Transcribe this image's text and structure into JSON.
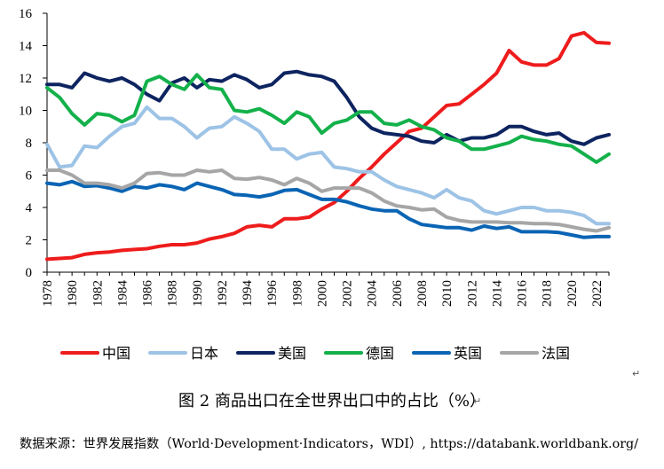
{
  "chart_data": {
    "type": "line",
    "title": "",
    "xlabel": "",
    "ylabel": "",
    "ylim": [
      0,
      16
    ],
    "y_ticks": [
      0,
      2,
      4,
      6,
      8,
      10,
      12,
      14,
      16
    ],
    "x_tick_labels": [
      "1978",
      "1980",
      "1982",
      "1984",
      "1986",
      "1988",
      "1990",
      "1992",
      "1994",
      "1996",
      "1998",
      "2000",
      "2002",
      "2004",
      "2006",
      "2008",
      "2010",
      "2012",
      "2014",
      "2016",
      "2018",
      "2020",
      "2022"
    ],
    "x": [
      1978,
      1979,
      1980,
      1981,
      1982,
      1983,
      1984,
      1985,
      1986,
      1987,
      1988,
      1989,
      1990,
      1991,
      1992,
      1993,
      1994,
      1995,
      1996,
      1997,
      1998,
      1999,
      2000,
      2001,
      2002,
      2003,
      2004,
      2005,
      2006,
      2007,
      2008,
      2009,
      2010,
      2011,
      2012,
      2013,
      2014,
      2015,
      2016,
      2017,
      2018,
      2019,
      2020,
      2021,
      2022,
      2023
    ],
    "grid": false,
    "legend_position": "bottom",
    "series": [
      {
        "name": "中国",
        "color": "#ee1c1c",
        "values": [
          0.8,
          0.85,
          0.9,
          1.1,
          1.2,
          1.25,
          1.35,
          1.4,
          1.45,
          1.6,
          1.7,
          1.7,
          1.8,
          2.05,
          2.2,
          2.4,
          2.8,
          2.9,
          2.8,
          3.3,
          3.3,
          3.4,
          3.9,
          4.3,
          5.0,
          5.8,
          6.5,
          7.3,
          8.0,
          8.7,
          8.9,
          9.6,
          10.3,
          10.4,
          11.0,
          11.6,
          12.3,
          13.7,
          13.0,
          12.8,
          12.8,
          13.2,
          14.6,
          14.8,
          14.2,
          14.15
        ]
      },
      {
        "name": "日本",
        "color": "#9dc3e6",
        "values": [
          7.9,
          6.5,
          6.6,
          7.8,
          7.7,
          8.4,
          9.0,
          9.2,
          10.2,
          9.5,
          9.5,
          9.0,
          8.3,
          8.9,
          9.0,
          9.6,
          9.2,
          8.7,
          7.6,
          7.6,
          7.0,
          7.3,
          7.4,
          6.5,
          6.4,
          6.2,
          6.2,
          5.7,
          5.3,
          5.1,
          4.9,
          4.6,
          5.1,
          4.6,
          4.4,
          3.8,
          3.6,
          3.8,
          4.0,
          4.0,
          3.8,
          3.8,
          3.7,
          3.5,
          3.0,
          3.0
        ]
      },
      {
        "name": "美国",
        "color": "#0d2460",
        "values": [
          11.6,
          11.6,
          11.4,
          12.3,
          12.0,
          11.8,
          12.0,
          11.6,
          11.0,
          10.6,
          11.7,
          12.0,
          11.4,
          11.9,
          11.8,
          12.2,
          11.9,
          11.4,
          11.6,
          12.3,
          12.4,
          12.2,
          12.1,
          11.8,
          10.8,
          9.6,
          8.9,
          8.6,
          8.5,
          8.4,
          8.1,
          8.0,
          8.5,
          8.1,
          8.3,
          8.3,
          8.5,
          9.0,
          9.0,
          8.7,
          8.5,
          8.6,
          8.1,
          7.9,
          8.3,
          8.5
        ]
      },
      {
        "name": "德国",
        "color": "#14b14b",
        "values": [
          11.4,
          10.8,
          9.8,
          9.1,
          9.8,
          9.7,
          9.3,
          9.7,
          11.8,
          12.1,
          11.6,
          11.3,
          12.2,
          11.4,
          11.3,
          10.0,
          9.9,
          10.1,
          9.7,
          9.2,
          9.9,
          9.6,
          8.6,
          9.2,
          9.4,
          9.9,
          9.9,
          9.2,
          9.1,
          9.4,
          9.0,
          8.8,
          8.3,
          8.1,
          7.6,
          7.6,
          7.8,
          8.0,
          8.4,
          8.2,
          8.1,
          7.9,
          7.8,
          7.3,
          6.8,
          7.3
        ]
      },
      {
        "name": "英国",
        "color": "#0a64b4",
        "values": [
          5.5,
          5.4,
          5.6,
          5.3,
          5.35,
          5.2,
          5.0,
          5.3,
          5.2,
          5.4,
          5.3,
          5.1,
          5.5,
          5.3,
          5.1,
          4.8,
          4.75,
          4.65,
          4.8,
          5.05,
          5.1,
          4.8,
          4.5,
          4.5,
          4.35,
          4.1,
          3.9,
          3.8,
          3.8,
          3.3,
          2.95,
          2.85,
          2.75,
          2.75,
          2.6,
          2.85,
          2.7,
          2.8,
          2.5,
          2.5,
          2.5,
          2.45,
          2.3,
          2.15,
          2.2,
          2.2
        ]
      },
      {
        "name": "法国",
        "color": "#a6a6a6",
        "values": [
          6.3,
          6.3,
          6.0,
          5.5,
          5.5,
          5.4,
          5.2,
          5.5,
          6.1,
          6.15,
          6.0,
          6.0,
          6.3,
          6.2,
          6.3,
          5.8,
          5.75,
          5.85,
          5.7,
          5.4,
          5.8,
          5.5,
          5.0,
          5.2,
          5.2,
          5.2,
          4.9,
          4.4,
          4.1,
          4.0,
          3.85,
          3.9,
          3.4,
          3.2,
          3.1,
          3.1,
          3.1,
          3.05,
          3.05,
          3.0,
          3.0,
          2.95,
          2.8,
          2.65,
          2.55,
          2.75
        ]
      }
    ]
  },
  "caption": "图 2 商品出口在全世界出口中的占比（%）",
  "source": "数据来源：世界发展指数（World·Development·Indicators，WDI）, https://databank.worldbank.org/"
}
